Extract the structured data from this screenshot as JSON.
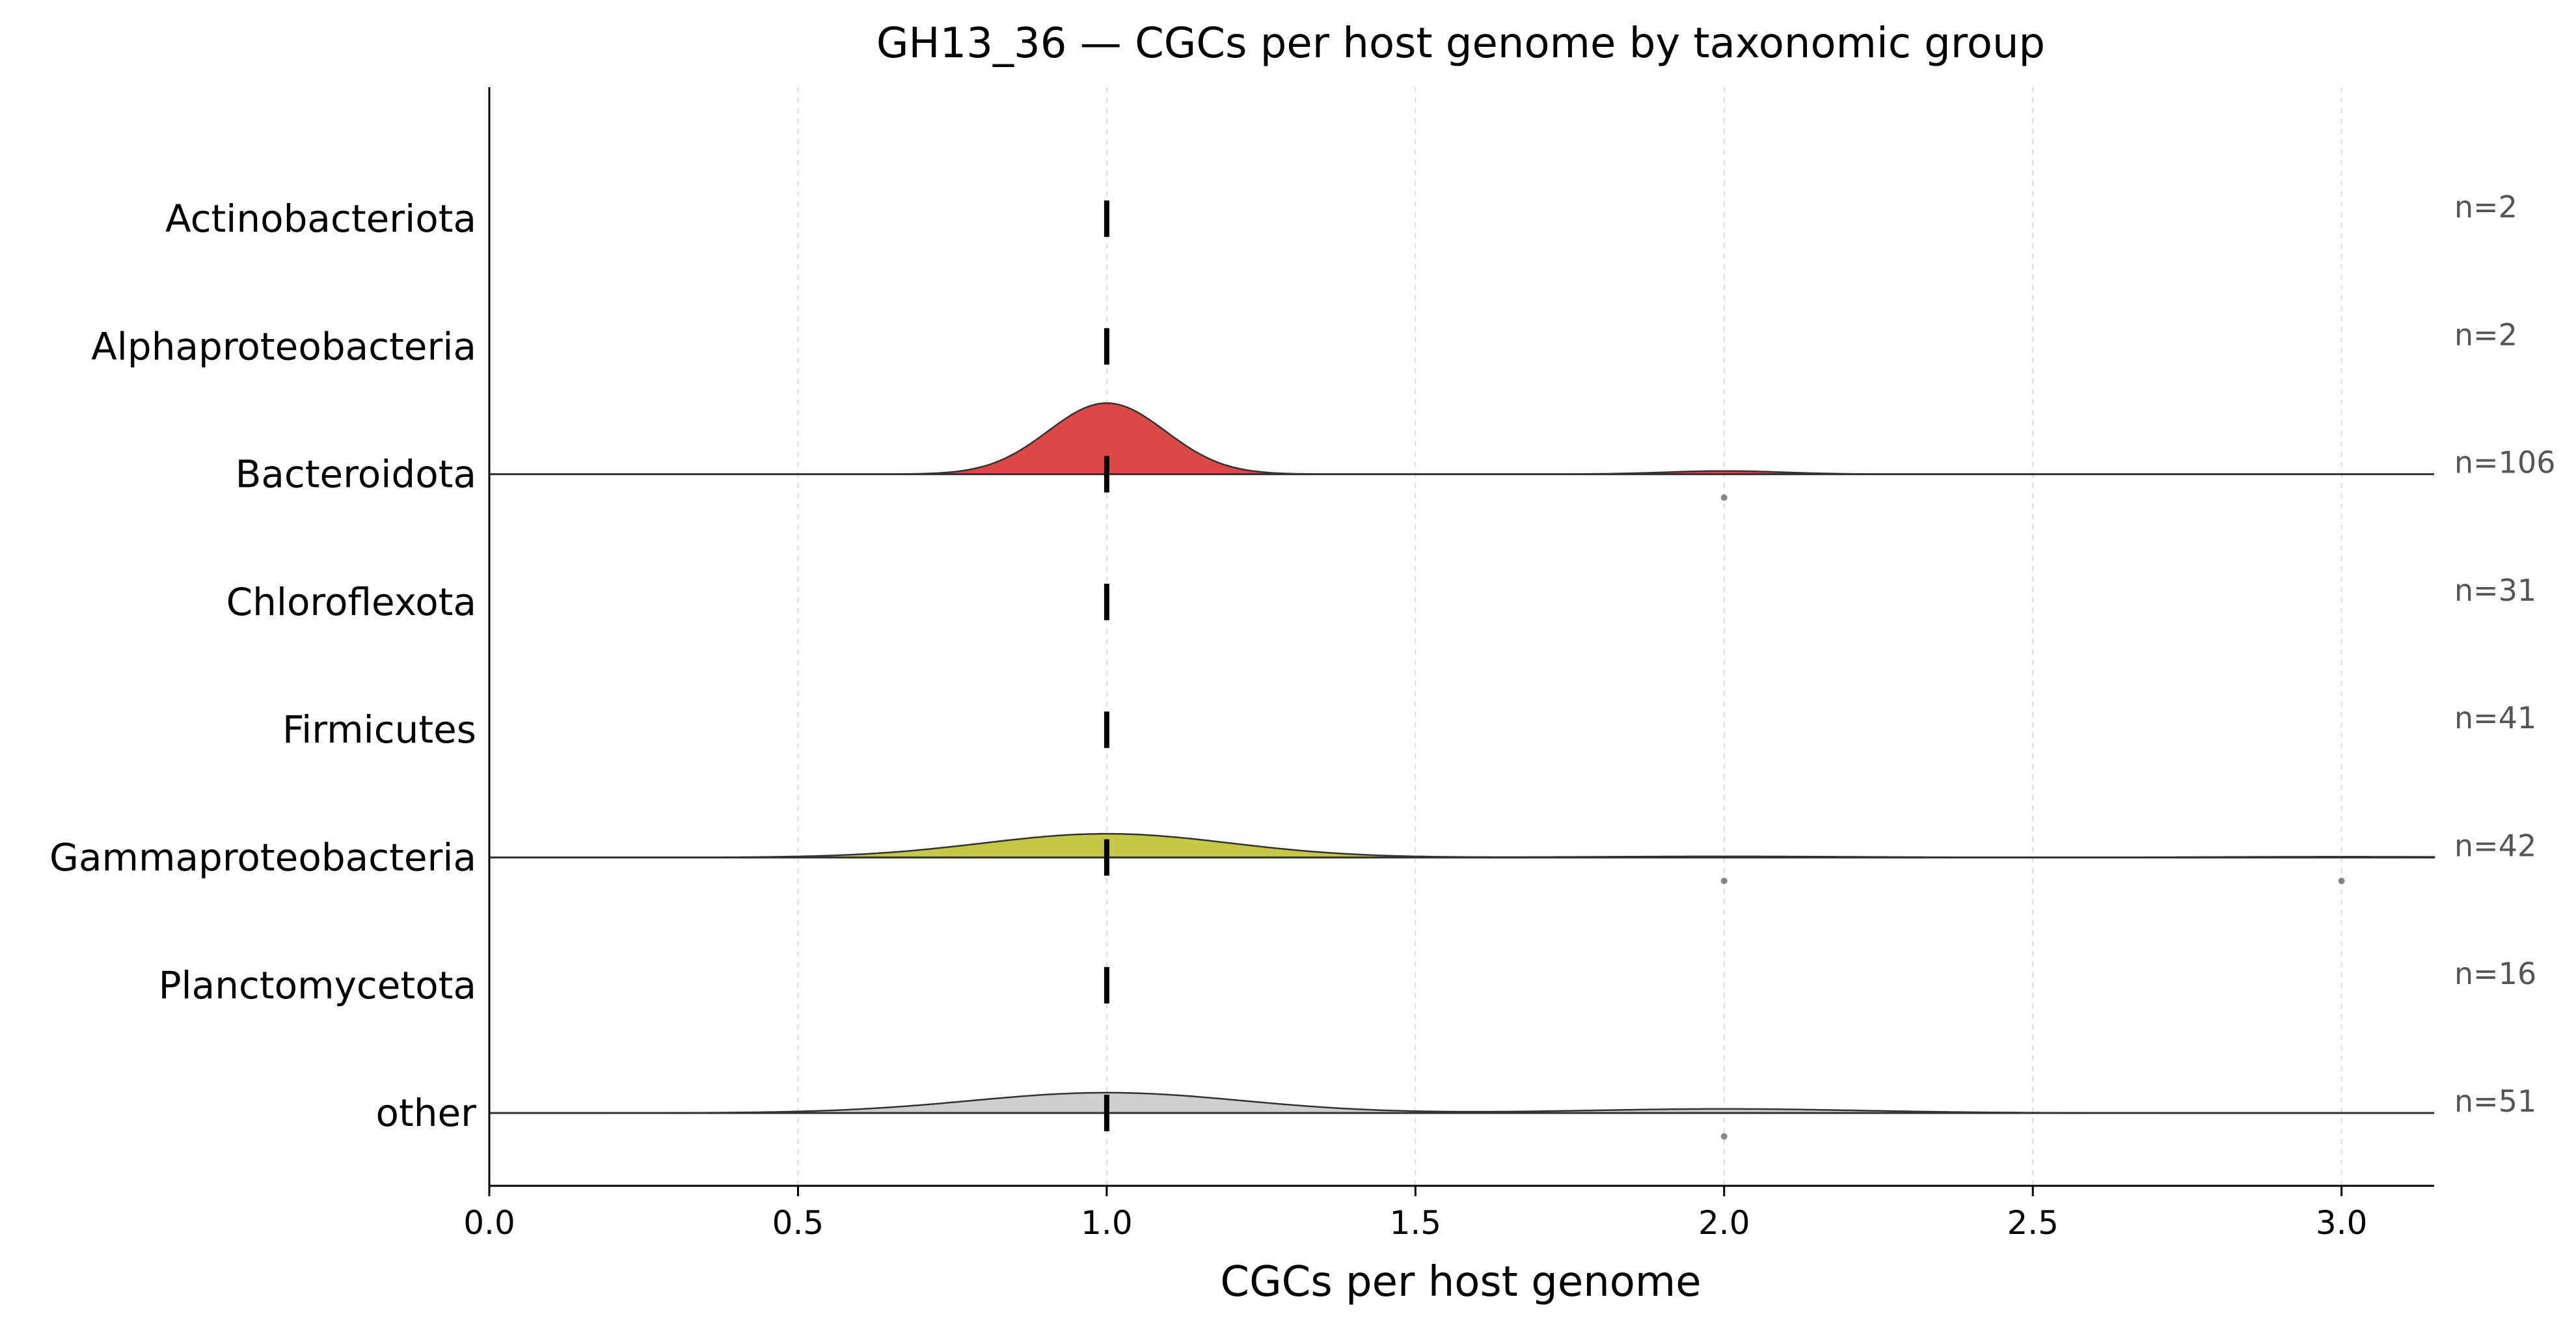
{
  "chart_data": {
    "type": "ridgeline",
    "title": "GH13_36 — CGCs per host genome by taxonomic group",
    "xlabel": "CGCs per host genome",
    "ylabel": "",
    "xlim": [
      0.0,
      3.15
    ],
    "x_ticks": [
      0.0,
      0.5,
      1.0,
      1.5,
      2.0,
      2.5,
      3.0
    ],
    "x_tick_labels": [
      "0.0",
      "0.5",
      "1.0",
      "1.5",
      "2.0",
      "2.5",
      "3.0"
    ],
    "grid": "vertical dashed at x ticks",
    "groups": [
      {
        "name": "Actinobacteriota",
        "n_label": "n=2",
        "median": 1.0,
        "density_peak_height": 0.0,
        "density_color": "",
        "density_components": [],
        "outliers": []
      },
      {
        "name": "Alphaproteobacteria",
        "n_label": "n=2",
        "median": 1.0,
        "density_peak_height": 0.0,
        "density_color": "",
        "density_components": [],
        "outliers": []
      },
      {
        "name": "Bacteroidota",
        "n_label": "n=106",
        "median": 1.0,
        "density_peak_height": 0.42,
        "density_color": "#d62728",
        "density_components": [
          {
            "mu": 1.0,
            "sigma": 0.095,
            "weight": 1.0
          },
          {
            "mu": 2.0,
            "sigma": 0.095,
            "weight": 0.045
          }
        ],
        "outliers": [
          2.0
        ]
      },
      {
        "name": "Chloroflexota",
        "n_label": "n=31",
        "median": 1.0,
        "density_peak_height": 0.0,
        "density_color": "",
        "density_components": [],
        "outliers": []
      },
      {
        "name": "Firmicutes",
        "n_label": "n=41",
        "median": 1.0,
        "density_peak_height": 0.0,
        "density_color": "",
        "density_components": [],
        "outliers": []
      },
      {
        "name": "Gammaproteobacteria",
        "n_label": "n=42",
        "median": 1.0,
        "density_peak_height": 0.14,
        "density_color": "#bcbd22",
        "density_components": [
          {
            "mu": 1.0,
            "sigma": 0.2,
            "weight": 1.0
          },
          {
            "mu": 2.0,
            "sigma": 0.2,
            "weight": 0.045
          },
          {
            "mu": 3.0,
            "sigma": 0.2,
            "weight": 0.03
          }
        ],
        "outliers": [
          2.0,
          3.0
        ]
      },
      {
        "name": "Planctomycetota",
        "n_label": "n=16",
        "median": 1.0,
        "density_peak_height": 0.0,
        "density_color": "",
        "density_components": [],
        "outliers": []
      },
      {
        "name": "other",
        "n_label": "n=51",
        "median": 1.0,
        "density_peak_height": 0.12,
        "density_color": "#c7c7c7",
        "density_components": [
          {
            "mu": 1.0,
            "sigma": 0.22,
            "weight": 1.0
          },
          {
            "mu": 2.0,
            "sigma": 0.22,
            "weight": 0.2
          }
        ],
        "outliers": [
          2.0
        ]
      }
    ]
  }
}
